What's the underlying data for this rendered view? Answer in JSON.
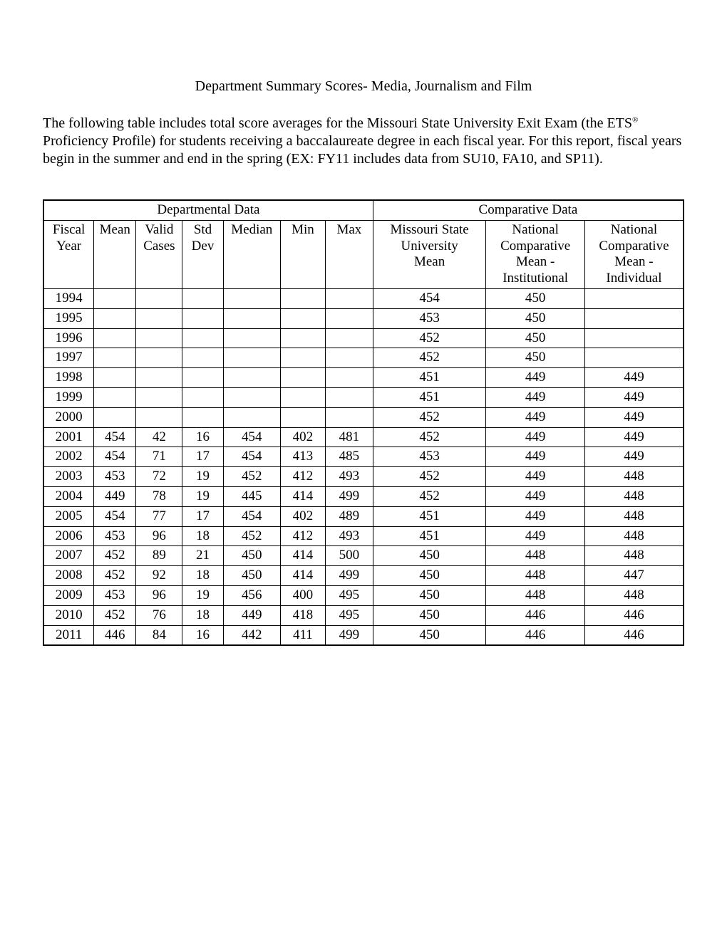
{
  "title": "Department Summary Scores- Media, Journalism and Film",
  "intro_part1": "The following table includes total score averages for the Missouri State University Exit Exam (the ETS",
  "intro_reg": "®",
  "intro_part2": " Proficiency Profile) for students receiving a baccalaureate degree in each fiscal year. For this report, fiscal years begin in the summer and end in the spring (EX: FY11 includes data from SU10, FA10, and SP11).",
  "section_headers": {
    "dept": "Departmental Data",
    "comp": "Comparative Data"
  },
  "columns": [
    "Fiscal Year",
    "Mean",
    "Valid Cases",
    "Std Dev",
    "Median",
    "Min",
    "Max",
    "Missouri State University Mean",
    "National Comparative Mean - Institutional",
    "National Comparative Mean - Individual"
  ],
  "rows": [
    {
      "fy": "1994",
      "mean": "",
      "valid": "",
      "std": "",
      "median": "",
      "min": "",
      "max": "",
      "msu": "454",
      "nci": "450",
      "ncind": ""
    },
    {
      "fy": "1995",
      "mean": "",
      "valid": "",
      "std": "",
      "median": "",
      "min": "",
      "max": "",
      "msu": "453",
      "nci": "450",
      "ncind": ""
    },
    {
      "fy": "1996",
      "mean": "",
      "valid": "",
      "std": "",
      "median": "",
      "min": "",
      "max": "",
      "msu": "452",
      "nci": "450",
      "ncind": ""
    },
    {
      "fy": "1997",
      "mean": "",
      "valid": "",
      "std": "",
      "median": "",
      "min": "",
      "max": "",
      "msu": "452",
      "nci": "450",
      "ncind": ""
    },
    {
      "fy": "1998",
      "mean": "",
      "valid": "",
      "std": "",
      "median": "",
      "min": "",
      "max": "",
      "msu": "451",
      "nci": "449",
      "ncind": "449"
    },
    {
      "fy": "1999",
      "mean": "",
      "valid": "",
      "std": "",
      "median": "",
      "min": "",
      "max": "",
      "msu": "451",
      "nci": "449",
      "ncind": "449"
    },
    {
      "fy": "2000",
      "mean": "",
      "valid": "",
      "std": "",
      "median": "",
      "min": "",
      "max": "",
      "msu": "452",
      "nci": "449",
      "ncind": "449"
    },
    {
      "fy": "2001",
      "mean": "454",
      "valid": "42",
      "std": "16",
      "median": "454",
      "min": "402",
      "max": "481",
      "msu": "452",
      "nci": "449",
      "ncind": "449"
    },
    {
      "fy": "2002",
      "mean": "454",
      "valid": "71",
      "std": "17",
      "median": "454",
      "min": "413",
      "max": "485",
      "msu": "453",
      "nci": "449",
      "ncind": "449"
    },
    {
      "fy": "2003",
      "mean": "453",
      "valid": "72",
      "std": "19",
      "median": "452",
      "min": "412",
      "max": "493",
      "msu": "452",
      "nci": "449",
      "ncind": "448"
    },
    {
      "fy": "2004",
      "mean": "449",
      "valid": "78",
      "std": "19",
      "median": "445",
      "min": "414",
      "max": "499",
      "msu": "452",
      "nci": "449",
      "ncind": "448"
    },
    {
      "fy": "2005",
      "mean": "454",
      "valid": "77",
      "std": "17",
      "median": "454",
      "min": "402",
      "max": "489",
      "msu": "451",
      "nci": "449",
      "ncind": "448"
    },
    {
      "fy": "2006",
      "mean": "453",
      "valid": "96",
      "std": "18",
      "median": "452",
      "min": "412",
      "max": "493",
      "msu": "451",
      "nci": "449",
      "ncind": "448"
    },
    {
      "fy": "2007",
      "mean": "452",
      "valid": "89",
      "std": "21",
      "median": "450",
      "min": "414",
      "max": "500",
      "msu": "450",
      "nci": "448",
      "ncind": "448"
    },
    {
      "fy": "2008",
      "mean": "452",
      "valid": "92",
      "std": "18",
      "median": "450",
      "min": "414",
      "max": "499",
      "msu": "450",
      "nci": "448",
      "ncind": "447"
    },
    {
      "fy": "2009",
      "mean": "453",
      "valid": "96",
      "std": "19",
      "median": "456",
      "min": "400",
      "max": "495",
      "msu": "450",
      "nci": "448",
      "ncind": "448"
    },
    {
      "fy": "2010",
      "mean": "452",
      "valid": "76",
      "std": "18",
      "median": "449",
      "min": "418",
      "max": "495",
      "msu": "450",
      "nci": "446",
      "ncind": "446"
    },
    {
      "fy": "2011",
      "mean": "446",
      "valid": "84",
      "std": "16",
      "median": "442",
      "min": "411",
      "max": "499",
      "msu": "450",
      "nci": "446",
      "ncind": "446"
    }
  ],
  "style": {
    "background_color": "#ffffff",
    "text_color": "#000000",
    "border_color": "#000000",
    "font_family": "Times New Roman",
    "title_fontsize": 20,
    "body_fontsize": 20,
    "table_fontsize": 19
  }
}
